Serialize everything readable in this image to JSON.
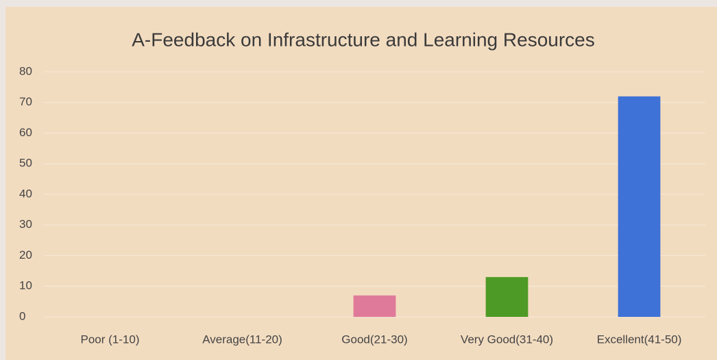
{
  "chart_data": {
    "type": "bar",
    "title": "A-Feedback on Infrastructure and Learning Resources",
    "categories": [
      "Poor (1-10)",
      "Average(11-20)",
      "Good(21-30)",
      "Very Good(31-40)",
      "Excellent(41-50)"
    ],
    "values": [
      0,
      0,
      7,
      13,
      72
    ],
    "colors": [
      "#4472c4",
      "#4472c4",
      "#e07a9a",
      "#4e9a26",
      "#3f72d6"
    ],
    "ylim": [
      0,
      80
    ],
    "yticks": [
      0,
      10,
      20,
      30,
      40,
      50,
      60,
      70,
      80
    ],
    "grid": true
  }
}
